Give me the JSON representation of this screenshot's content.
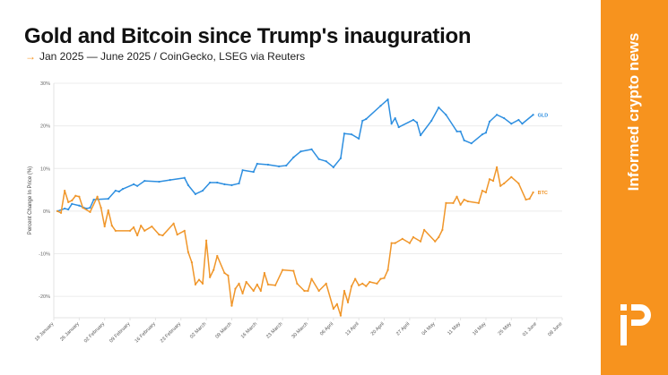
{
  "header": {
    "title": "Gold and Bitcoin since Trump's inauguration",
    "subtitle_arrow": "→",
    "subtitle": "Jan 2025 — June 2025 / CoinGecko, LSEG via Reuters"
  },
  "sidebar": {
    "tagline": "Informed crypto news",
    "logo": "iP",
    "background": "#F7931E"
  },
  "chart_data": {
    "type": "line",
    "title": "Gold and Bitcoin since Trump's inauguration",
    "ylabel": "Percent Change In Price (%)",
    "xlabel": "",
    "ylim": [
      -25,
      30
    ],
    "xlim": [
      "2025-01-19",
      "2025-06-08"
    ],
    "grid": true,
    "y_ticks": [
      30,
      20,
      10,
      0,
      -10,
      -20
    ],
    "y_tick_labels": [
      "30%",
      "20%",
      "10%",
      "0%",
      "-10%",
      "-20%"
    ],
    "x_ticks": [
      "2025-01-19",
      "2025-01-26",
      "2025-02-02",
      "2025-02-09",
      "2025-02-16",
      "2025-02-23",
      "2025-03-02",
      "2025-03-09",
      "2025-03-16",
      "2025-03-23",
      "2025-03-30",
      "2025-04-06",
      "2025-04-13",
      "2025-04-20",
      "2025-04-27",
      "2025-05-04",
      "2025-05-11",
      "2025-05-18",
      "2025-05-25",
      "2025-06-01",
      "2025-06-08"
    ],
    "x_tick_labels": [
      "19 January",
      "26 January",
      "02 February",
      "09 February",
      "16 February",
      "23 February",
      "02 March",
      "09 March",
      "16 March",
      "23 March",
      "30 March",
      "06 April",
      "13 April",
      "20 April",
      "27 April",
      "04 May",
      "11 May",
      "18 May",
      "25 May",
      "01 June",
      "08 June"
    ],
    "series": [
      {
        "name": "GLD",
        "color": "#2E8FE0",
        "points": [
          [
            "2025-01-20",
            0
          ],
          [
            "2025-01-22",
            0.6
          ],
          [
            "2025-01-23",
            0.4
          ],
          [
            "2025-01-24",
            1.7
          ],
          [
            "2025-01-26",
            1.3
          ],
          [
            "2025-01-28",
            0.6
          ],
          [
            "2025-01-29",
            0.8
          ],
          [
            "2025-01-30",
            2.7
          ],
          [
            "2025-02-03",
            2.9
          ],
          [
            "2025-02-05",
            4.8
          ],
          [
            "2025-02-06",
            4.6
          ],
          [
            "2025-02-07",
            5.2
          ],
          [
            "2025-02-10",
            6.3
          ],
          [
            "2025-02-11",
            5.9
          ],
          [
            "2025-02-13",
            7.1
          ],
          [
            "2025-02-17",
            6.9
          ],
          [
            "2025-02-20",
            7.3
          ],
          [
            "2025-02-24",
            7.8
          ],
          [
            "2025-02-25",
            6.1
          ],
          [
            "2025-02-27",
            4.0
          ],
          [
            "2025-03-01",
            4.8
          ],
          [
            "2025-03-03",
            6.7
          ],
          [
            "2025-03-05",
            6.7
          ],
          [
            "2025-03-07",
            6.3
          ],
          [
            "2025-03-09",
            6.1
          ],
          [
            "2025-03-11",
            6.5
          ],
          [
            "2025-03-12",
            9.6
          ],
          [
            "2025-03-15",
            9.2
          ],
          [
            "2025-03-16",
            11.1
          ],
          [
            "2025-03-19",
            10.9
          ],
          [
            "2025-03-22",
            10.5
          ],
          [
            "2025-03-24",
            10.7
          ],
          [
            "2025-03-26",
            12.6
          ],
          [
            "2025-03-28",
            14.0
          ],
          [
            "2025-03-31",
            14.5
          ],
          [
            "2025-04-02",
            12.2
          ],
          [
            "2025-04-04",
            11.7
          ],
          [
            "2025-04-06",
            10.3
          ],
          [
            "2025-04-08",
            12.4
          ],
          [
            "2025-04-09",
            18.2
          ],
          [
            "2025-04-11",
            18.0
          ],
          [
            "2025-04-13",
            17.0
          ],
          [
            "2025-04-14",
            21.2
          ],
          [
            "2025-04-15",
            21.6
          ],
          [
            "2025-04-19",
            24.7
          ],
          [
            "2025-04-21",
            26.2
          ],
          [
            "2025-04-22",
            20.5
          ],
          [
            "2025-04-23",
            21.8
          ],
          [
            "2025-04-24",
            19.7
          ],
          [
            "2025-04-28",
            21.4
          ],
          [
            "2025-04-29",
            20.8
          ],
          [
            "2025-04-30",
            17.8
          ],
          [
            "2025-05-03",
            21.2
          ],
          [
            "2025-05-05",
            24.3
          ],
          [
            "2025-05-07",
            22.6
          ],
          [
            "2025-05-10",
            18.7
          ],
          [
            "2025-05-11",
            18.7
          ],
          [
            "2025-05-12",
            16.6
          ],
          [
            "2025-05-14",
            15.9
          ],
          [
            "2025-05-17",
            18.0
          ],
          [
            "2025-05-18",
            18.4
          ],
          [
            "2025-05-19",
            21.0
          ],
          [
            "2025-05-21",
            22.6
          ],
          [
            "2025-05-23",
            21.8
          ],
          [
            "2025-05-25",
            20.5
          ],
          [
            "2025-05-27",
            21.4
          ],
          [
            "2025-05-28",
            20.5
          ],
          [
            "2025-05-31",
            22.6
          ]
        ]
      },
      {
        "name": "BTC",
        "color": "#F0962A",
        "points": [
          [
            "2025-01-20",
            0
          ],
          [
            "2025-01-21",
            -0.4
          ],
          [
            "2025-01-22",
            4.8
          ],
          [
            "2025-01-23",
            2.1
          ],
          [
            "2025-01-24",
            2.5
          ],
          [
            "2025-01-25",
            3.6
          ],
          [
            "2025-01-26",
            3.4
          ],
          [
            "2025-01-27",
            0.8
          ],
          [
            "2025-01-29",
            -0.2
          ],
          [
            "2025-01-31",
            3.4
          ],
          [
            "2025-02-01",
            0.8
          ],
          [
            "2025-02-02",
            -3.6
          ],
          [
            "2025-02-03",
            0.2
          ],
          [
            "2025-02-04",
            -3.4
          ],
          [
            "2025-02-05",
            -4.6
          ],
          [
            "2025-02-09",
            -4.6
          ],
          [
            "2025-02-10",
            -3.8
          ],
          [
            "2025-02-11",
            -5.7
          ],
          [
            "2025-02-12",
            -3.4
          ],
          [
            "2025-02-13",
            -4.6
          ],
          [
            "2025-02-15",
            -3.6
          ],
          [
            "2025-02-17",
            -5.5
          ],
          [
            "2025-02-18",
            -5.7
          ],
          [
            "2025-02-21",
            -2.9
          ],
          [
            "2025-02-22",
            -5.5
          ],
          [
            "2025-02-24",
            -4.6
          ],
          [
            "2025-02-25",
            -9.6
          ],
          [
            "2025-02-26",
            -12.0
          ],
          [
            "2025-02-27",
            -17.2
          ],
          [
            "2025-02-28",
            -16.1
          ],
          [
            "2025-03-01",
            -17.0
          ],
          [
            "2025-03-02",
            -6.9
          ],
          [
            "2025-03-03",
            -15.5
          ],
          [
            "2025-03-04",
            -13.8
          ],
          [
            "2025-03-05",
            -10.5
          ],
          [
            "2025-03-07",
            -14.5
          ],
          [
            "2025-03-08",
            -15.1
          ],
          [
            "2025-03-09",
            -22.2
          ],
          [
            "2025-03-10",
            -18.2
          ],
          [
            "2025-03-11",
            -17.0
          ],
          [
            "2025-03-12",
            -19.3
          ],
          [
            "2025-03-13",
            -16.6
          ],
          [
            "2025-03-15",
            -18.7
          ],
          [
            "2025-03-16",
            -17.2
          ],
          [
            "2025-03-17",
            -18.7
          ],
          [
            "2025-03-18",
            -14.5
          ],
          [
            "2025-03-19",
            -17.2
          ],
          [
            "2025-03-21",
            -17.4
          ],
          [
            "2025-03-23",
            -13.8
          ],
          [
            "2025-03-26",
            -14.0
          ],
          [
            "2025-03-27",
            -17.0
          ],
          [
            "2025-03-29",
            -18.7
          ],
          [
            "2025-03-30",
            -18.7
          ],
          [
            "2025-03-31",
            -15.9
          ],
          [
            "2025-04-02",
            -18.7
          ],
          [
            "2025-04-04",
            -17.0
          ],
          [
            "2025-04-06",
            -22.9
          ],
          [
            "2025-04-07",
            -21.8
          ],
          [
            "2025-04-08",
            -24.5
          ],
          [
            "2025-04-09",
            -18.7
          ],
          [
            "2025-04-10",
            -21.4
          ],
          [
            "2025-04-11",
            -17.6
          ],
          [
            "2025-04-12",
            -15.9
          ],
          [
            "2025-04-13",
            -17.4
          ],
          [
            "2025-04-14",
            -17.0
          ],
          [
            "2025-04-15",
            -17.6
          ],
          [
            "2025-04-16",
            -16.6
          ],
          [
            "2025-04-18",
            -17.0
          ],
          [
            "2025-04-19",
            -15.9
          ],
          [
            "2025-04-20",
            -15.7
          ],
          [
            "2025-04-21",
            -13.8
          ],
          [
            "2025-04-22",
            -7.5
          ],
          [
            "2025-04-23",
            -7.5
          ],
          [
            "2025-04-25",
            -6.5
          ],
          [
            "2025-04-27",
            -7.5
          ],
          [
            "2025-04-28",
            -6.1
          ],
          [
            "2025-04-30",
            -7.1
          ],
          [
            "2025-05-01",
            -4.4
          ],
          [
            "2025-05-04",
            -7.1
          ],
          [
            "2025-05-05",
            -6.1
          ],
          [
            "2025-05-06",
            -4.4
          ],
          [
            "2025-05-07",
            1.9
          ],
          [
            "2025-05-09",
            1.9
          ],
          [
            "2025-05-10",
            3.4
          ],
          [
            "2025-05-11",
            1.5
          ],
          [
            "2025-05-12",
            2.7
          ],
          [
            "2025-05-13",
            2.3
          ],
          [
            "2025-05-16",
            1.9
          ],
          [
            "2025-05-17",
            4.8
          ],
          [
            "2025-05-18",
            4.4
          ],
          [
            "2025-05-19",
            7.5
          ],
          [
            "2025-05-20",
            7.1
          ],
          [
            "2025-05-21",
            10.3
          ],
          [
            "2025-05-22",
            5.9
          ],
          [
            "2025-05-23",
            6.5
          ],
          [
            "2025-05-25",
            8.0
          ],
          [
            "2025-05-27",
            6.5
          ],
          [
            "2025-05-29",
            2.7
          ],
          [
            "2025-05-30",
            2.9
          ],
          [
            "2025-05-31",
            4.4
          ]
        ]
      }
    ]
  }
}
